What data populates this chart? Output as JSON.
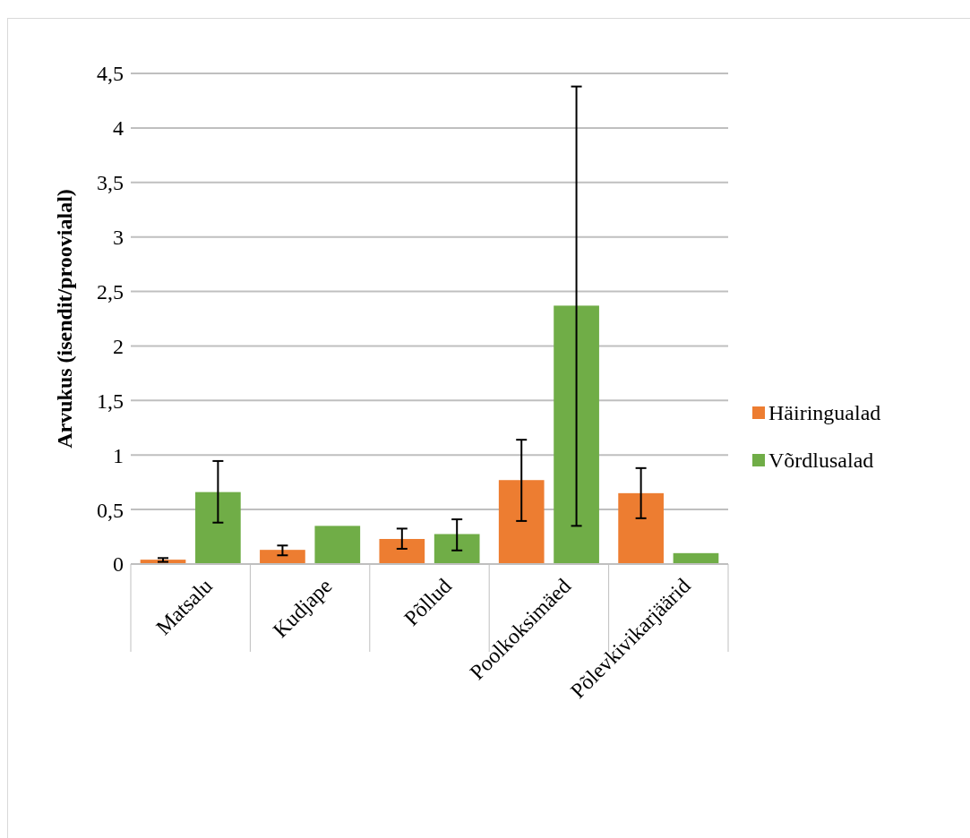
{
  "chart_data": {
    "type": "bar",
    "ylabel": "Arvukus (isendit/proovialal)",
    "categories": [
      "Matsalu",
      "Kudjape",
      "Põllud",
      "Poolkoksimäed",
      "Põlevkivikarjäärid"
    ],
    "series": [
      {
        "name": "Häiringualad",
        "color": "#ed7d31",
        "values": [
          0.04,
          0.13,
          0.23,
          0.77,
          0.65
        ],
        "errors": [
          [
            0.02,
            0.055
          ],
          [
            0.08,
            0.17
          ],
          [
            0.14,
            0.325
          ],
          [
            0.395,
            1.14
          ],
          [
            0.42,
            0.88
          ]
        ]
      },
      {
        "name": "Võrdlusalad",
        "color": "#70ad47",
        "values": [
          0.66,
          0.35,
          0.275,
          2.37,
          0.1
        ],
        "errors": [
          [
            0.38,
            0.945
          ],
          null,
          [
            0.125,
            0.41
          ],
          [
            0.35,
            4.38
          ],
          null
        ]
      }
    ],
    "ylim": [
      0,
      4.5
    ],
    "yticks": [
      {
        "value": 0,
        "label": "0"
      },
      {
        "value": 0.5,
        "label": "0,5"
      },
      {
        "value": 1,
        "label": "1"
      },
      {
        "value": 1.5,
        "label": "1,5"
      },
      {
        "value": 2,
        "label": "2"
      },
      {
        "value": 2.5,
        "label": "2,5"
      },
      {
        "value": 3,
        "label": "3"
      },
      {
        "value": 3.5,
        "label": "3,5"
      },
      {
        "value": 4,
        "label": "4"
      },
      {
        "value": 4.5,
        "label": "4,5"
      }
    ],
    "grid": "y",
    "legend": "right"
  }
}
